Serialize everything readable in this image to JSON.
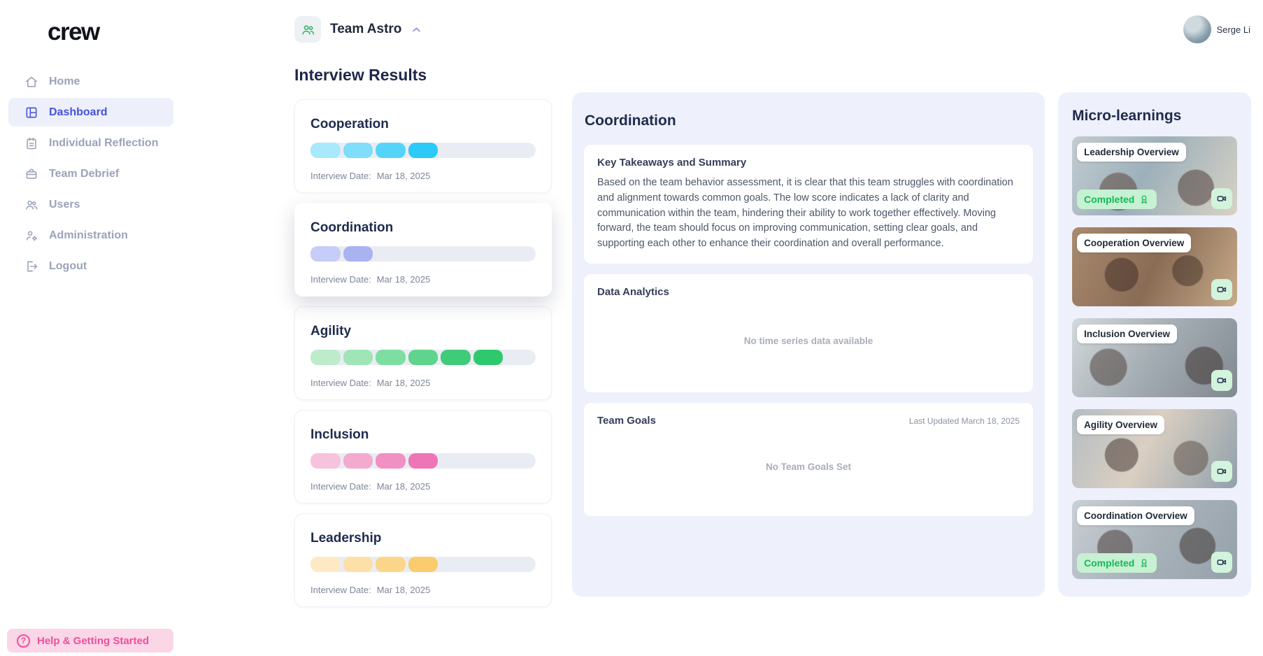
{
  "brand": {
    "name": "crew",
    "dot_colors": [
      "#ee3e97",
      "#2ec46d",
      "#29bdf0",
      "#f6bf4f"
    ]
  },
  "sidebar": {
    "items": [
      {
        "label": "Home",
        "icon": "home",
        "active": false
      },
      {
        "label": "Dashboard",
        "icon": "dashboard",
        "active": true
      },
      {
        "label": "Individual Reflection",
        "icon": "reflection",
        "active": false
      },
      {
        "label": "Team Debrief",
        "icon": "debrief",
        "active": false
      },
      {
        "label": "Users",
        "icon": "users",
        "active": false
      },
      {
        "label": "Administration",
        "icon": "admin",
        "active": false
      },
      {
        "label": "Logout",
        "icon": "logout",
        "active": false
      }
    ],
    "help_label": "Help & Getting Started",
    "accent_active": "#4553e0",
    "help_color": "#ec4f9e"
  },
  "header": {
    "team_name": "Team Astro",
    "user_name": "Serge Li"
  },
  "interview_results": {
    "title": "Interview Results",
    "date_label": "Interview Date:",
    "max_segments": 7,
    "cards": [
      {
        "title": "Cooperation",
        "score": 4,
        "date": "Mar 18, 2025",
        "selected": false,
        "colors": [
          "#a8e9fc",
          "#7edefb",
          "#55d4fa",
          "#2ccaf9"
        ]
      },
      {
        "title": "Coordination",
        "score": 2,
        "date": "Mar 18, 2025",
        "selected": true,
        "colors": [
          "#c6cdf8",
          "#a9b3f2"
        ]
      },
      {
        "title": "Agility",
        "score": 6,
        "date": "Mar 18, 2025",
        "selected": false,
        "colors": [
          "#bdecca",
          "#9fe5b6",
          "#7edda1",
          "#5ed48c",
          "#3fcc78",
          "#2fc96d"
        ]
      },
      {
        "title": "Inclusion",
        "score": 4,
        "date": "Mar 18, 2025",
        "selected": false,
        "colors": [
          "#f7c3dc",
          "#f4aacf",
          "#f190c3",
          "#ee76b6"
        ]
      },
      {
        "title": "Leadership",
        "score": 4,
        "date": "Mar 18, 2025",
        "selected": false,
        "colors": [
          "#fdeac5",
          "#fce0a7",
          "#fbd68a",
          "#facc6d"
        ]
      }
    ],
    "track_color": "#e9edf3"
  },
  "detail_panel": {
    "title": "Coordination",
    "key_takeaways": {
      "title": "Key Takeaways and Summary",
      "body": "Based on the team behavior assessment, it is clear that this team struggles with coordination and alignment towards common goals. The low score indicates a lack of clarity and communication within the team, hindering their ability to work together effectively. Moving forward, the team should focus on improving communication, setting clear goals, and supporting each other to enhance their coordination and overall performance."
    },
    "data_analytics": {
      "title": "Data Analytics",
      "empty_message": "No time series data available"
    },
    "team_goals": {
      "title": "Team Goals",
      "last_updated": "Last Updated March 18, 2025",
      "empty_message": "No Team Goals Set"
    }
  },
  "micro_learnings": {
    "title": "Micro-learnings",
    "completed_label": "Completed",
    "completed_color": "#16b857",
    "items": [
      {
        "label": "Leadership Overview",
        "completed": true
      },
      {
        "label": "Cooperation Overview",
        "completed": false
      },
      {
        "label": "Inclusion Overview",
        "completed": false
      },
      {
        "label": "Agility Overview",
        "completed": false
      },
      {
        "label": "Coordination Overview",
        "completed": true
      }
    ]
  }
}
